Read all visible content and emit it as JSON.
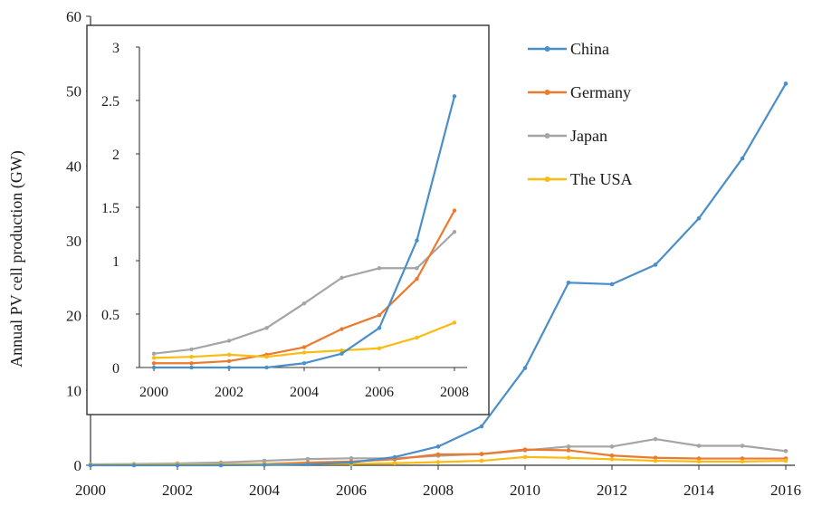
{
  "chart_data": [
    {
      "type": "line",
      "ylabel": "Annual PV cell production (GW)",
      "xlabel": "",
      "x": [
        2000,
        2001,
        2002,
        2003,
        2004,
        2005,
        2006,
        2007,
        2008,
        2009,
        2010,
        2011,
        2012,
        2013,
        2014,
        2015,
        2016
      ],
      "x_ticks": [
        "2000",
        "2002",
        "2004",
        "2006",
        "2008",
        "2010",
        "2012",
        "2014",
        "2016"
      ],
      "y_ticks": [
        "0",
        "10",
        "20",
        "30",
        "40",
        "50",
        "60"
      ],
      "xlim": [
        2000,
        2016
      ],
      "ylim": [
        0,
        60
      ],
      "grid": false,
      "legend": "right",
      "series": [
        {
          "name": "China",
          "color": "#4a8fc9",
          "values": [
            0.0,
            0.0,
            0.0,
            0.0,
            0.04,
            0.13,
            0.37,
            1.09,
            2.5,
            5.2,
            13.0,
            24.4,
            24.2,
            26.8,
            33.0,
            41.0,
            51.0
          ]
        },
        {
          "name": "Germany",
          "color": "#ec7a2e",
          "values": [
            0.05,
            0.05,
            0.09,
            0.13,
            0.19,
            0.37,
            0.5,
            0.8,
            1.45,
            1.5,
            2.1,
            2.0,
            1.3,
            1.0,
            0.9,
            0.9,
            0.9
          ]
        },
        {
          "name": "Japan",
          "color": "#a5a5a5",
          "values": [
            0.12,
            0.17,
            0.25,
            0.37,
            0.6,
            0.83,
            0.93,
            0.93,
            1.27,
            1.5,
            2.0,
            2.5,
            2.5,
            3.5,
            2.6,
            2.6,
            1.9
          ]
        },
        {
          "name": "The USA",
          "color": "#fcbb13",
          "values": [
            0.07,
            0.1,
            0.12,
            0.1,
            0.14,
            0.16,
            0.18,
            0.27,
            0.42,
            0.6,
            1.1,
            1.0,
            0.8,
            0.6,
            0.5,
            0.5,
            0.6
          ]
        }
      ]
    },
    {
      "type": "line",
      "xlabel": "",
      "ylabel": "",
      "x": [
        2000,
        2001,
        2002,
        2003,
        2004,
        2005,
        2006,
        2007,
        2008
      ],
      "x_ticks": [
        "2000",
        "2002",
        "2004",
        "2006",
        "2008"
      ],
      "y_ticks": [
        "0",
        "0.5",
        "1",
        "1.5",
        "2",
        "2.5",
        "3"
      ],
      "xlim": [
        2000,
        2008
      ],
      "ylim": [
        0,
        3
      ],
      "grid": false,
      "series": [
        {
          "name": "China",
          "color": "#4a8fc9",
          "values": [
            0.0,
            0.0,
            0.0,
            0.0,
            0.04,
            0.13,
            0.37,
            1.19,
            2.54
          ]
        },
        {
          "name": "Germany",
          "color": "#ec7a2e",
          "values": [
            0.04,
            0.04,
            0.06,
            0.12,
            0.19,
            0.36,
            0.49,
            0.83,
            1.47
          ]
        },
        {
          "name": "Japan",
          "color": "#a5a5a5",
          "values": [
            0.13,
            0.17,
            0.25,
            0.37,
            0.6,
            0.84,
            0.93,
            0.93,
            1.27
          ]
        },
        {
          "name": "The USA",
          "color": "#fcbb13",
          "values": [
            0.09,
            0.1,
            0.12,
            0.1,
            0.14,
            0.16,
            0.18,
            0.28,
            0.42
          ]
        }
      ]
    }
  ]
}
